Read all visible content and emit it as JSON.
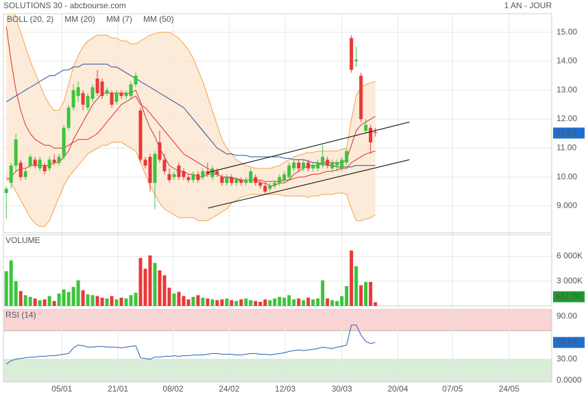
{
  "chart_data": [
    {
      "type": "candlestick",
      "title": "SOLUTIONS 30 - abcbourse.com",
      "subtitle": "1 AN - JOUR",
      "up_color": "#3cc43c",
      "down_color": "#e83838",
      "xlim": [
        -0.6,
        113.8
      ],
      "ylim": [
        8.08,
        15.64
      ],
      "yticks": [
        {
          "value": 9,
          "label": "9.000"
        },
        {
          "value": 10,
          "label": "10.00"
        },
        {
          "value": 11,
          "label": "11.00"
        },
        {
          "value": 12,
          "label": "12.00"
        },
        {
          "value": 13,
          "label": "13.00"
        },
        {
          "value": 14,
          "label": "14.00"
        },
        {
          "value": 15,
          "label": "15.00"
        }
      ],
      "grid": true,
      "open": [
        9.45,
        9.8,
        10.4,
        10.5,
        10.0,
        10.4,
        10.6,
        10.3,
        10.4,
        10.3,
        10.6,
        10.5,
        10.7,
        11.7,
        12.4,
        12.8,
        12.9,
        12.4,
        12.7,
        13.4,
        13.3,
        12.9,
        12.9,
        12.6,
        12.9,
        12.8,
        12.8,
        13.2,
        12.3,
        10.6,
        10.7,
        9.8,
        11.2,
        10.6,
        10.1,
        10.0,
        10.4,
        10.2,
        10.0,
        9.9,
        10.1,
        10.0,
        10.2,
        10.0,
        10.2,
        10.0,
        9.8,
        10.0,
        9.8,
        9.9,
        9.8,
        9.8,
        10.0,
        9.8,
        9.7,
        9.6,
        9.7,
        9.8,
        9.9,
        10.0,
        10.3,
        10.5,
        10.3,
        10.5,
        10.3,
        10.3,
        10.4,
        10.6,
        10.3,
        10.4,
        10.3,
        10.5,
        14.8,
        14.0,
        13.5,
        11.6,
        11.7,
        11.55
      ],
      "high": [
        9.7,
        10.5,
        11.5,
        10.6,
        10.3,
        10.8,
        10.7,
        10.7,
        10.5,
        10.7,
        10.8,
        10.8,
        11.8,
        12.5,
        13.2,
        13.3,
        13.0,
        12.9,
        13.2,
        13.7,
        13.4,
        13.1,
        13.0,
        13.0,
        13.0,
        13.0,
        13.3,
        13.6,
        12.4,
        10.7,
        10.8,
        10.9,
        11.6,
        10.8,
        10.3,
        10.2,
        10.5,
        10.3,
        10.1,
        10.2,
        10.2,
        10.3,
        10.5,
        10.4,
        10.3,
        10.1,
        10.1,
        10.1,
        10.0,
        10.0,
        10.0,
        10.3,
        10.1,
        9.9,
        9.8,
        9.8,
        9.9,
        10.1,
        10.2,
        10.5,
        10.6,
        10.6,
        10.6,
        10.6,
        10.5,
        10.6,
        11.1,
        10.7,
        10.6,
        10.6,
        10.7,
        11.0,
        14.9,
        14.5,
        13.6,
        12.0,
        11.8,
        11.7
      ],
      "low": [
        8.55,
        9.6,
        10.2,
        9.9,
        9.9,
        10.3,
        10.3,
        10.2,
        10.1,
        10.2,
        10.4,
        10.4,
        10.6,
        11.6,
        12.3,
        12.6,
        12.3,
        12.3,
        12.6,
        12.8,
        12.7,
        12.8,
        12.4,
        12.5,
        12.7,
        12.7,
        12.7,
        13.1,
        10.5,
        10.3,
        9.5,
        8.9,
        10.5,
        10.1,
        9.8,
        9.9,
        9.9,
        9.9,
        9.8,
        9.8,
        9.8,
        9.9,
        10.0,
        9.9,
        10.0,
        9.7,
        9.7,
        9.7,
        9.7,
        9.7,
        9.7,
        9.8,
        9.7,
        9.6,
        9.4,
        9.5,
        9.6,
        9.7,
        9.8,
        9.9,
        10.2,
        10.2,
        10.2,
        10.2,
        10.2,
        10.2,
        10.3,
        10.3,
        10.2,
        10.2,
        10.2,
        10.4,
        13.6,
        13.8,
        11.9,
        11.5,
        10.8,
        11.4
      ],
      "close": [
        9.6,
        10.4,
        11.3,
        10.0,
        10.2,
        10.7,
        10.4,
        10.6,
        10.2,
        10.6,
        10.5,
        10.7,
        11.7,
        12.4,
        13.0,
        13.1,
        12.5,
        12.8,
        13.1,
        12.9,
        12.8,
        13.0,
        12.5,
        12.9,
        12.8,
        12.9,
        13.2,
        13.5,
        10.6,
        10.4,
        9.8,
        10.8,
        10.6,
        10.2,
        9.9,
        10.1,
        10.0,
        10.0,
        9.9,
        10.1,
        9.9,
        10.2,
        10.1,
        10.3,
        10.1,
        9.8,
        10.0,
        9.8,
        9.9,
        9.8,
        9.9,
        10.2,
        9.8,
        9.7,
        9.5,
        9.7,
        9.8,
        10.0,
        10.1,
        10.4,
        10.5,
        10.3,
        10.5,
        10.3,
        10.4,
        10.5,
        10.7,
        10.4,
        10.5,
        10.5,
        10.6,
        10.9,
        13.7,
        14.05,
        12.0,
        11.8,
        11.2,
        11.52
      ],
      "bollinger": {
        "name": "BOLL (20, 2)",
        "color": "#f0a04a",
        "fill": "#fde6cf",
        "upper": [
          16.5,
          16.0,
          15.5,
          15.0,
          14.5,
          14.0,
          13.6,
          13.2,
          12.8,
          12.5,
          12.3,
          12.3,
          12.6,
          13.2,
          13.8,
          14.2,
          14.5,
          14.7,
          14.8,
          14.9,
          14.9,
          14.9,
          14.8,
          14.8,
          14.7,
          14.7,
          14.6,
          14.6,
          14.7,
          14.8,
          14.9,
          14.95,
          15.0,
          15.0,
          15.0,
          14.9,
          14.8,
          14.6,
          14.4,
          14.1,
          13.7,
          13.3,
          12.8,
          12.3,
          11.8,
          11.3,
          11.0,
          10.8,
          10.6,
          10.5,
          10.4,
          10.35,
          10.3,
          10.3,
          10.3,
          10.3,
          10.35,
          10.4,
          10.5,
          10.6,
          10.7,
          10.75,
          10.8,
          10.85,
          10.85,
          10.9,
          10.9,
          10.9,
          10.9,
          10.9,
          10.95,
          11.0,
          12.0,
          12.8,
          13.1,
          13.2,
          13.25,
          13.3
        ],
        "lower": [
          10.0,
          9.8,
          9.5,
          9.2,
          8.9,
          8.6,
          8.4,
          8.3,
          8.3,
          8.5,
          8.9,
          9.3,
          9.7,
          10.0,
          10.2,
          10.4,
          10.6,
          10.8,
          10.9,
          11.0,
          11.1,
          11.1,
          11.2,
          11.2,
          11.2,
          11.1,
          11.0,
          10.9,
          10.5,
          10.1,
          9.7,
          9.4,
          9.1,
          8.9,
          8.8,
          8.7,
          8.6,
          8.6,
          8.6,
          8.6,
          8.5,
          8.5,
          8.5,
          8.6,
          8.7,
          8.8,
          8.9,
          9.1,
          9.2,
          9.3,
          9.35,
          9.4,
          9.4,
          9.4,
          9.4,
          9.4,
          9.4,
          9.4,
          9.35,
          9.35,
          9.35,
          9.35,
          9.35,
          9.3,
          9.35,
          9.35,
          9.4,
          9.4,
          9.4,
          9.45,
          9.45,
          9.4,
          8.9,
          8.5,
          8.5,
          8.55,
          8.6,
          8.7
        ]
      },
      "series": [
        {
          "name": "MM (20)",
          "color": "#e02828",
          "values": [
            15.2,
            14.0,
            13.0,
            12.3,
            11.8,
            11.5,
            11.3,
            11.2,
            11.1,
            11.1,
            11.0,
            11.0,
            11.0,
            11.1,
            11.2,
            11.3,
            11.3,
            11.3,
            11.4,
            11.5,
            11.7,
            11.9,
            12.1,
            12.3,
            12.5,
            12.6,
            12.7,
            12.8,
            12.5,
            12.4,
            12.2,
            12.0,
            11.8,
            11.6,
            11.4,
            11.2,
            11.0,
            10.8,
            10.7,
            10.6,
            10.5,
            10.4,
            10.3,
            10.2,
            10.1,
            10.0,
            10.0,
            9.95,
            9.95,
            9.9,
            9.9,
            9.9,
            9.9,
            9.9,
            9.85,
            9.85,
            9.85,
            9.85,
            9.9,
            9.9,
            9.95,
            10.0,
            10.0,
            10.05,
            10.1,
            10.1,
            10.15,
            10.2,
            10.2,
            10.25,
            10.3,
            10.3,
            10.5,
            10.6,
            10.7,
            10.8,
            10.85,
            10.9
          ]
        },
        {
          "name": "MM (7)",
          "color": "#b83a3a",
          "values": [
            9.9,
            10.0,
            10.2,
            10.3,
            10.3,
            10.4,
            10.4,
            10.4,
            10.4,
            10.4,
            10.5,
            10.5,
            10.7,
            10.9,
            11.3,
            11.6,
            11.9,
            12.2,
            12.5,
            12.7,
            12.9,
            12.9,
            12.9,
            12.9,
            12.9,
            12.9,
            12.9,
            13.0,
            12.6,
            12.1,
            11.7,
            11.4,
            11.0,
            10.7,
            10.4,
            10.3,
            10.2,
            10.2,
            10.1,
            10.1,
            10.0,
            10.0,
            10.1,
            10.1,
            10.1,
            10.0,
            10.0,
            10.0,
            9.9,
            9.9,
            9.9,
            9.9,
            9.9,
            9.8,
            9.8,
            9.7,
            9.7,
            9.8,
            9.8,
            9.9,
            10.1,
            10.2,
            10.3,
            10.4,
            10.4,
            10.4,
            10.5,
            10.5,
            10.5,
            10.5,
            10.5,
            10.6,
            11.1,
            11.6,
            11.8,
            11.9,
            12.0,
            12.1
          ]
        },
        {
          "name": "MM (50)",
          "color": "#1f4f99",
          "values": [
            12.6,
            12.7,
            12.8,
            12.9,
            13.0,
            13.1,
            13.2,
            13.3,
            13.4,
            13.5,
            13.5,
            13.6,
            13.7,
            13.7,
            13.8,
            13.8,
            13.9,
            13.9,
            13.9,
            13.9,
            13.9,
            13.9,
            13.8,
            13.8,
            13.7,
            13.6,
            13.5,
            13.4,
            13.3,
            13.2,
            13.1,
            13.0,
            12.9,
            12.8,
            12.7,
            12.6,
            12.5,
            12.4,
            12.2,
            12.0,
            11.8,
            11.6,
            11.4,
            11.2,
            11.0,
            10.9,
            10.8,
            10.8,
            10.75,
            10.75,
            10.75,
            10.7,
            10.7,
            10.7,
            10.7,
            10.7,
            10.7,
            10.7,
            10.65,
            10.65,
            10.6,
            10.6,
            10.6,
            10.55,
            10.5,
            10.5,
            10.45,
            10.4,
            10.4,
            10.35,
            10.35,
            10.35,
            10.35,
            10.4,
            10.4,
            10.4,
            10.4,
            10.4
          ]
        }
      ],
      "lines": [
        {
          "x": [
            42.1,
            84.1
          ],
          "y": [
            10.16,
            11.9
          ]
        },
        {
          "x": [
            42.1,
            84.1
          ],
          "y": [
            8.93,
            10.6
          ]
        }
      ]
    },
    {
      "type": "bar",
      "title": "VOLUME",
      "color": "#3cb83c",
      "ylim": [
        0,
        8600
      ],
      "yticks": [
        {
          "value": 3000,
          "label": "3 000K"
        },
        {
          "value": 6000,
          "label": "6 000K"
        }
      ],
      "values": [
        4200,
        5500,
        3000,
        1800,
        1300,
        1100,
        900,
        700,
        800,
        1200,
        600,
        1500,
        2000,
        1700,
        2300,
        3100,
        1900,
        1400,
        1300,
        1200,
        1000,
        900,
        1200,
        800,
        1000,
        900,
        1300,
        1600,
        5800,
        4500,
        6100,
        5200,
        4300,
        3700,
        2200,
        1500,
        1700,
        1200,
        800,
        1100,
        1300,
        1000,
        900,
        800,
        700,
        800,
        900,
        700,
        600,
        800,
        900,
        700,
        600,
        500,
        800,
        700,
        900,
        1100,
        1000,
        1300,
        800,
        900,
        700,
        1000,
        800,
        900,
        3100,
        900,
        700,
        600,
        1200,
        2400,
        6700,
        4800,
        2500,
        2900,
        2900,
        451
      ],
      "last_value_label": "451.0K"
    },
    {
      "type": "line",
      "title": "RSI (14)",
      "color": "#2060b0",
      "ylim": [
        0,
        100
      ],
      "yticks": [
        {
          "value": 0,
          "label": "0.0000"
        },
        {
          "value": 30,
          "label": "30.00"
        },
        {
          "value": 90,
          "label": "90.00"
        }
      ],
      "zones": [
        {
          "from": 70,
          "to": 100,
          "color": "#fbd3d3"
        },
        {
          "from": 0,
          "to": 30,
          "color": "#d9edd9"
        }
      ],
      "xticks": [
        {
          "value": 11.6,
          "label": "05/01"
        },
        {
          "value": 23.3,
          "label": "21/01"
        },
        {
          "value": 34.8,
          "label": "08/02"
        },
        {
          "value": 46.5,
          "label": "24/02"
        },
        {
          "value": 58.2,
          "label": "12/03"
        },
        {
          "value": 70,
          "label": "30/03"
        },
        {
          "value": 81.7,
          "label": "20/04"
        },
        {
          "value": 93.1,
          "label": "07/05"
        },
        {
          "value": 104.9,
          "label": "24/05"
        }
      ],
      "values": [
        23,
        28,
        30,
        31,
        32,
        33,
        33,
        34,
        34,
        35,
        35,
        36,
        37,
        38,
        46,
        50,
        49,
        47,
        47,
        48,
        48,
        47,
        47,
        47,
        46,
        47,
        48,
        49,
        32,
        31,
        30,
        33,
        33,
        34,
        34,
        35,
        34,
        35,
        35,
        36,
        36,
        36,
        37,
        38,
        38,
        37,
        37,
        37,
        36,
        36,
        37,
        38,
        38,
        37,
        37,
        36,
        37,
        38,
        39,
        41,
        42,
        43,
        42,
        43,
        44,
        45,
        47,
        46,
        45,
        47,
        48,
        50,
        78,
        78,
        64,
        55,
        52,
        53.54
      ]
    }
  ]
}
